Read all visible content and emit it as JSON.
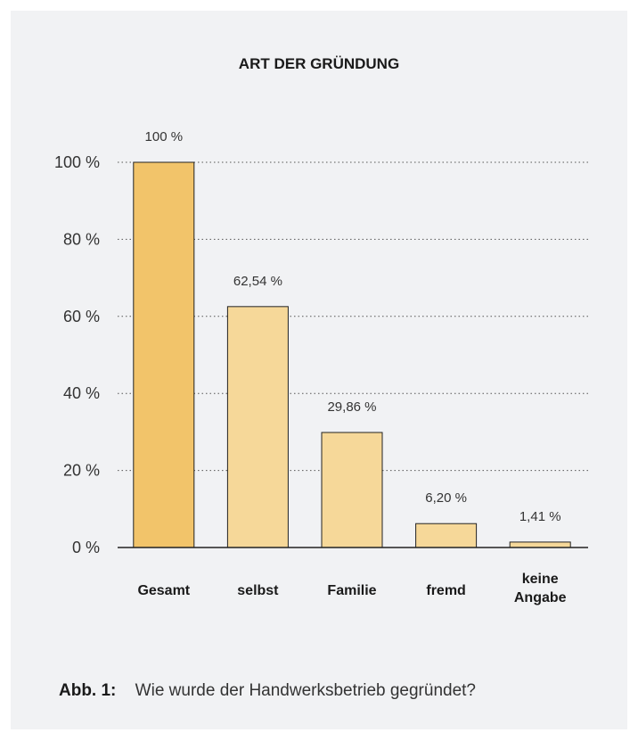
{
  "chart_data": {
    "type": "bar",
    "title": "ART DER GRÜNDUNG",
    "categories": [
      [
        "Gesamt"
      ],
      [
        "selbst"
      ],
      [
        "Familie"
      ],
      [
        "fremd"
      ],
      [
        "keine",
        "Angabe"
      ]
    ],
    "values": [
      100,
      62.54,
      29.86,
      6.2,
      1.41
    ],
    "value_labels": [
      "100 %",
      "62,54 %",
      "29,86 %",
      "6,20 %",
      "1,41 %"
    ],
    "ylim": [
      0,
      100
    ],
    "yticks": [
      0,
      20,
      40,
      60,
      80,
      100
    ],
    "ytick_labels": [
      "0 %",
      "20 %",
      "40 %",
      "60 %",
      "80 %",
      "100 %"
    ],
    "grid": true,
    "colors": {
      "highlight": "#f2c46a",
      "bar": "#f6d899",
      "outline": "#222222"
    }
  },
  "caption": {
    "label": "Abb. 1:",
    "text": "Wie wurde der Handwerksbetrieb gegründet?"
  }
}
